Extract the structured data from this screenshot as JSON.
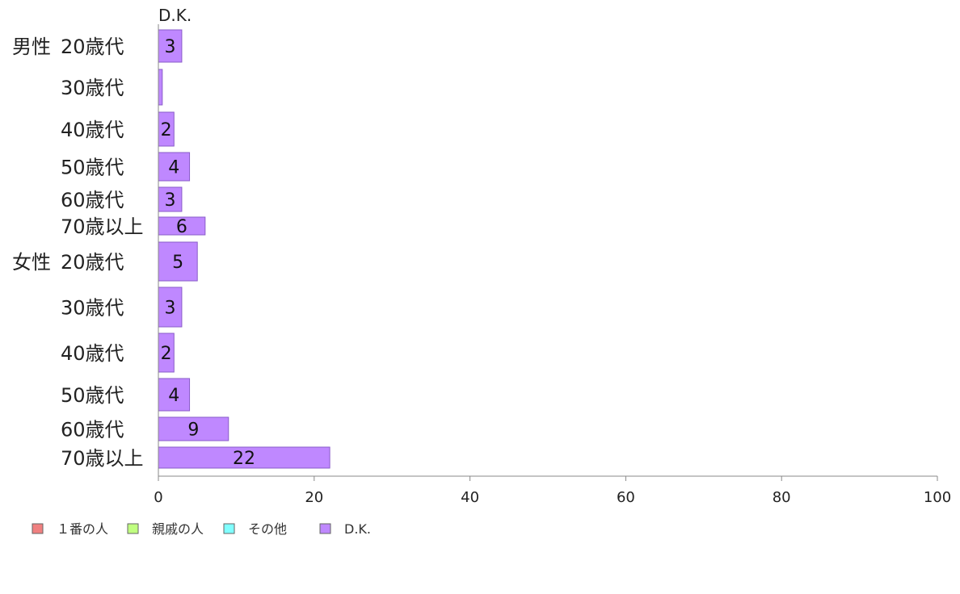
{
  "chart_data": {
    "type": "bar",
    "orientation": "horizontal",
    "stacked": true,
    "top_label": "D.K.",
    "groups": [
      {
        "label": "男性",
        "categories": [
          "20歳代",
          "30歳代",
          "40歳代",
          "50歳代",
          "60歳代",
          "70歳以上"
        ]
      },
      {
        "label": "女性",
        "categories": [
          "20歳代",
          "30歳代",
          "40歳代",
          "50歳代",
          "60歳代",
          "70歳以上"
        ]
      }
    ],
    "categories": [
      "20歳代",
      "30歳代",
      "40歳代",
      "50歳代",
      "60歳代",
      "70歳以上",
      "20歳代",
      "30歳代",
      "40歳代",
      "50歳代",
      "60歳代",
      "70歳以上"
    ],
    "series": [
      {
        "name": "１番の人",
        "color": "#f08080",
        "values": [
          0,
          0,
          0,
          0,
          0,
          0,
          0,
          0,
          0,
          0,
          0,
          0
        ]
      },
      {
        "name": "親戚の人",
        "color": "#c0ff80",
        "values": [
          0,
          0,
          0,
          0,
          0,
          0,
          0,
          0,
          0,
          0,
          0,
          0
        ]
      },
      {
        "name": "その他",
        "color": "#80ffff",
        "values": [
          0,
          0,
          0,
          0,
          0,
          0,
          0,
          0,
          0,
          0,
          0,
          0
        ]
      },
      {
        "name": "D.K.",
        "color": "#bf88ff",
        "values": [
          3,
          0.5,
          2,
          4,
          3,
          6,
          5,
          3,
          2,
          4,
          9,
          22
        ],
        "labels": [
          "3",
          "",
          "2",
          "4",
          "3",
          "6",
          "5",
          "3",
          "2",
          "4",
          "9",
          "22"
        ]
      }
    ],
    "xlim": [
      0,
      100
    ],
    "xticks": [
      "0",
      "20",
      "40",
      "60",
      "80",
      "100"
    ],
    "grid": false,
    "legend_position": "bottom-left"
  }
}
